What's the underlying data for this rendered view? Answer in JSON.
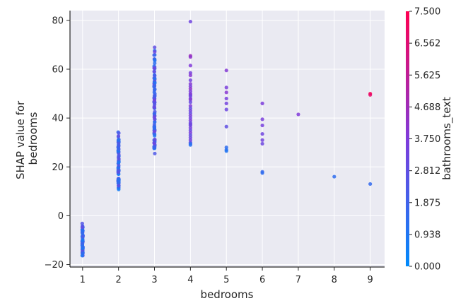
{
  "chart_data": {
    "type": "scatter",
    "title": "",
    "xlabel": "bedrooms",
    "ylabel_lines": [
      "SHAP value for",
      "bedrooms"
    ],
    "xlim": [
      0.65,
      9.4
    ],
    "ylim": [
      -21,
      84
    ],
    "x_ticks": [
      1,
      2,
      3,
      4,
      5,
      6,
      7,
      8,
      9
    ],
    "y_ticks": [
      -20,
      0,
      20,
      40,
      60,
      80
    ],
    "colorbar": {
      "label": "bathrooms_text",
      "min": 0.0,
      "max": 7.5,
      "tick_values": [
        0.0,
        0.938,
        1.875,
        2.812,
        3.75,
        4.688,
        5.625,
        6.562,
        7.5
      ],
      "tick_labels": [
        "0.000",
        "0.938",
        "1.875",
        "2.812",
        "3.750",
        "4.688",
        "5.625",
        "6.562",
        "7.500"
      ],
      "colors": [
        "#008afb",
        "#7f3bdb",
        "#ff0051"
      ]
    },
    "background_color": "#eaeaf2",
    "grid": true,
    "groups": [
      {
        "x": 1,
        "y_min": -16.5,
        "y_max": -3,
        "count": 60,
        "c_min": 0.7,
        "c_max": 3.0
      },
      {
        "x": 2,
        "y_min": 9,
        "y_max": 35.5,
        "count": 80,
        "c_min": 0.6,
        "c_max": 3.0
      },
      {
        "x": 3,
        "y_min": 23.5,
        "y_max": 70,
        "count": 110,
        "c_min": 0.8,
        "c_max": 3.4
      }
    ],
    "points": [
      [
        4,
        79.5,
        3.3
      ],
      [
        4,
        65.5,
        4.6
      ],
      [
        4,
        65,
        4.2
      ],
      [
        4,
        61.5,
        3.8
      ],
      [
        4,
        58.5,
        3.5
      ],
      [
        4,
        57.5,
        4.0
      ],
      [
        4,
        55.5,
        3.4
      ],
      [
        4,
        54,
        3.9
      ],
      [
        4,
        53,
        3.6
      ],
      [
        4,
        52,
        4.2
      ],
      [
        4,
        51,
        3.7
      ],
      [
        4,
        50,
        3.5
      ],
      [
        4,
        49.5,
        4.0
      ],
      [
        4,
        49,
        3.2
      ],
      [
        4,
        48,
        3.6
      ],
      [
        4,
        47.5,
        3.9
      ],
      [
        4,
        46.5,
        3.1
      ],
      [
        4,
        45,
        3.8
      ],
      [
        4,
        44,
        2.9
      ],
      [
        4,
        43,
        3.4
      ],
      [
        4,
        42,
        3.0
      ],
      [
        4,
        41,
        3.6
      ],
      [
        4,
        40,
        3.3
      ],
      [
        4,
        39,
        3.7
      ],
      [
        4,
        38,
        3.0
      ],
      [
        4,
        37.5,
        3.4
      ],
      [
        4,
        37,
        3.2
      ],
      [
        4,
        36,
        3.5
      ],
      [
        4,
        35,
        3.1
      ],
      [
        4,
        34,
        3.6
      ],
      [
        4,
        33,
        2.9
      ],
      [
        4,
        32,
        3.2
      ],
      [
        4,
        31,
        3.4
      ],
      [
        4,
        30,
        3.0
      ],
      [
        4,
        29.5,
        1.5
      ],
      [
        4,
        29,
        1.2
      ],
      [
        5,
        59.5,
        3.9
      ],
      [
        5,
        52.5,
        3.6
      ],
      [
        5,
        50.5,
        4.0
      ],
      [
        5,
        48,
        3.5
      ],
      [
        5,
        46,
        3.4
      ],
      [
        5,
        43.5,
        3.2
      ],
      [
        5,
        36.5,
        2.8
      ],
      [
        5,
        28,
        1.4
      ],
      [
        5,
        27,
        1.2
      ],
      [
        5,
        26.5,
        1.0
      ],
      [
        6,
        46,
        3.7
      ],
      [
        6,
        39.5,
        3.6
      ],
      [
        6,
        37,
        3.5
      ],
      [
        6,
        33.5,
        3.3
      ],
      [
        6,
        31,
        3.4
      ],
      [
        6,
        29.5,
        3.2
      ],
      [
        6,
        18,
        1.6
      ],
      [
        6,
        17.5,
        1.4
      ],
      [
        7,
        41.5,
        3.8
      ],
      [
        8,
        16,
        1.4
      ],
      [
        9,
        50,
        7.4
      ],
      [
        9,
        49.5,
        6.8
      ],
      [
        9,
        13,
        1.5
      ]
    ]
  }
}
